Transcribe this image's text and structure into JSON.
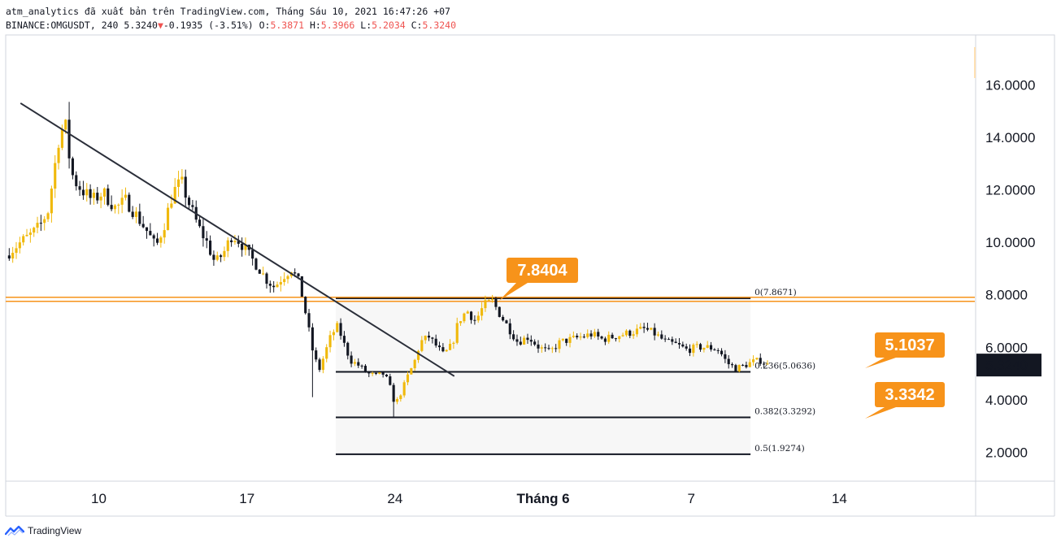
{
  "header": {
    "line1": "atm_analytics đã xuất bản trên TradingView.com, Tháng Sáu 10, 2021 16:47:26 +07",
    "symbol_interval": "BINANCE:OMGUSDT, 240 5.3240",
    "change_arrow": "▼",
    "change": "-0.1935 (-3.51%)",
    "o_label": "O:",
    "o_value": "5.3871",
    "h_label": "H:",
    "h_value": "5.3966",
    "l_label": "L:",
    "l_value": "5.2034",
    "c_label": "C:",
    "c_value": "5.3240"
  },
  "footer": {
    "brand": "TradingView"
  },
  "colors": {
    "bull": "#f0b90b",
    "bear": "#131722",
    "accent": "#f7931a",
    "red": "#ef5350"
  },
  "chart_data": {
    "type": "candlestick",
    "ylim": [
      0.9,
      17.9
    ],
    "y_ticks": [
      "2.0000",
      "4.0000",
      "6.0000",
      "8.0000",
      "10.0000",
      "12.0000",
      "14.0000",
      "16.0000"
    ],
    "x_ticks": [
      {
        "label": "10",
        "day": 10
      },
      {
        "label": "17",
        "day": 17
      },
      {
        "label": "24",
        "day": 24
      },
      {
        "label": "Tháng 6",
        "day": 31
      },
      {
        "label": "7",
        "day": 38
      },
      {
        "label": "14",
        "day": 45
      }
    ],
    "x_domain_days": [
      5.6,
      51.4
    ],
    "last_price": "5.3240",
    "resistance_level": 7.83,
    "trendline": [
      {
        "day": 6.3,
        "price": 15.3
      },
      {
        "day": 26.8,
        "price": 4.9
      }
    ],
    "fib_levels": [
      {
        "label": "0(7.8671)",
        "price": 7.8671
      },
      {
        "label": "0.236(5.0636)",
        "price": 5.0636
      },
      {
        "label": "0.382(3.3292)",
        "price": 3.3292
      },
      {
        "label": "0.5(1.9274)",
        "price": 1.9274
      }
    ],
    "fib_range_days": [
      21.2,
      40.8
    ],
    "callouts": [
      {
        "text": "7.8404",
        "price": 7.8404
      },
      {
        "text": "5.1037",
        "price": 5.1037
      },
      {
        "text": "3.3342",
        "price": 3.3342
      }
    ],
    "ohlc_close_path": [
      [
        5.6,
        9.5
      ],
      [
        6.3,
        10.0
      ],
      [
        6.8,
        10.3
      ],
      [
        7.2,
        10.6
      ],
      [
        7.6,
        11.2
      ],
      [
        7.9,
        12.8
      ],
      [
        8.1,
        13.9
      ],
      [
        8.4,
        14.6
      ],
      [
        8.6,
        13.3
      ],
      [
        8.8,
        12.4
      ],
      [
        9.2,
        12.0
      ],
      [
        9.7,
        11.6
      ],
      [
        10.2,
        11.9
      ],
      [
        10.8,
        11.3
      ],
      [
        11.3,
        11.6
      ],
      [
        11.8,
        11.0
      ],
      [
        12.3,
        10.4
      ],
      [
        12.7,
        9.8
      ],
      [
        13.1,
        10.7
      ],
      [
        13.5,
        11.9
      ],
      [
        13.9,
        12.3
      ],
      [
        14.3,
        11.4
      ],
      [
        14.7,
        10.6
      ],
      [
        15.1,
        10.0
      ],
      [
        15.5,
        9.2
      ],
      [
        15.9,
        9.6
      ],
      [
        16.3,
        10.3
      ],
      [
        16.7,
        10.0
      ],
      [
        17.1,
        9.5
      ],
      [
        17.5,
        9.1
      ],
      [
        17.9,
        8.6
      ],
      [
        18.3,
        8.3
      ],
      [
        18.7,
        8.7
      ],
      [
        19.1,
        9.0
      ],
      [
        19.5,
        8.4
      ],
      [
        19.8,
        7.2
      ],
      [
        20.1,
        5.9
      ],
      [
        20.4,
        5.1
      ],
      [
        20.7,
        5.8
      ],
      [
        21.0,
        6.5
      ],
      [
        21.3,
        6.8
      ],
      [
        21.6,
        6.1
      ],
      [
        21.9,
        5.5
      ],
      [
        22.3,
        5.3
      ],
      [
        22.7,
        5.0
      ],
      [
        23.1,
        4.9
      ],
      [
        23.5,
        5.0
      ],
      [
        23.8,
        4.4
      ],
      [
        24.0,
        3.8
      ],
      [
        24.3,
        4.3
      ],
      [
        24.6,
        4.9
      ],
      [
        24.9,
        5.4
      ],
      [
        25.2,
        6.2
      ],
      [
        25.6,
        6.4
      ],
      [
        26.0,
        6.0
      ],
      [
        26.3,
        5.7
      ],
      [
        26.7,
        6.1
      ],
      [
        27.0,
        7.0
      ],
      [
        27.4,
        7.4
      ],
      [
        27.8,
        7.0
      ],
      [
        28.2,
        7.6
      ],
      [
        28.6,
        7.75
      ],
      [
        29.0,
        7.2
      ],
      [
        29.4,
        6.7
      ],
      [
        29.8,
        6.2
      ],
      [
        30.3,
        6.4
      ],
      [
        30.8,
        6.0
      ],
      [
        31.3,
        5.8
      ],
      [
        31.8,
        6.2
      ],
      [
        32.3,
        6.3
      ],
      [
        32.8,
        6.4
      ],
      [
        33.3,
        6.5
      ],
      [
        33.8,
        6.3
      ],
      [
        34.3,
        6.4
      ],
      [
        34.8,
        6.5
      ],
      [
        35.3,
        6.6
      ],
      [
        35.8,
        6.7
      ],
      [
        36.3,
        6.5
      ],
      [
        36.8,
        6.2
      ],
      [
        37.3,
        6.1
      ],
      [
        37.8,
        5.9
      ],
      [
        38.3,
        6.0
      ],
      [
        38.8,
        6.0
      ],
      [
        39.3,
        5.9
      ],
      [
        39.7,
        5.4
      ],
      [
        40.1,
        5.2
      ],
      [
        40.5,
        5.3
      ],
      [
        40.9,
        5.45
      ],
      [
        41.3,
        5.5
      ],
      [
        41.6,
        5.32
      ]
    ]
  }
}
